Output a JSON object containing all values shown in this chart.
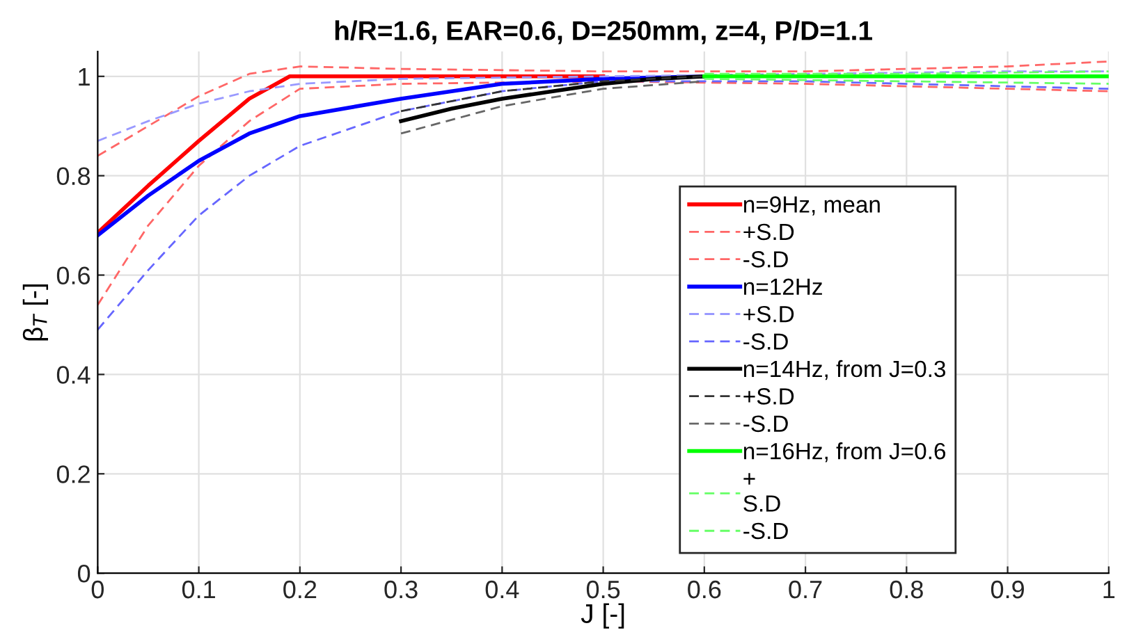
{
  "chart_data": {
    "type": "line",
    "title": "h/R=1.6, EAR=0.6, D=250mm, z=4, P/D=1.1",
    "xlabel": "J [-]",
    "ylabel": "β$_{T}$ [-]",
    "xlim": [
      0,
      1
    ],
    "ylim": [
      0,
      1.05
    ],
    "xticks": [
      0,
      0.1,
      0.2,
      0.3,
      0.4,
      0.5,
      0.6,
      0.7,
      0.8,
      0.9,
      1
    ],
    "yticks": [
      0,
      0.2,
      0.4,
      0.6,
      0.8,
      1
    ],
    "grid": true,
    "legend": "right",
    "marker": "none",
    "series": [
      {
        "name": "n=9Hz, mean",
        "color": "#ff0000",
        "line_style": "solid",
        "x": [
          0,
          0.05,
          0.1,
          0.15,
          0.19,
          0.3,
          0.5
        ],
        "values": [
          0.685,
          0.78,
          0.87,
          0.955,
          1.0,
          1.0,
          1.0
        ]
      },
      {
        "name": "+S.D",
        "color": "#ff6666",
        "line_style": "dashed",
        "x": [
          0,
          0.05,
          0.1,
          0.15,
          0.2,
          0.3,
          0.5,
          0.7,
          0.9,
          1.0
        ],
        "values": [
          0.84,
          0.9,
          0.96,
          1.005,
          1.02,
          1.015,
          1.01,
          1.01,
          1.02,
          1.03
        ]
      },
      {
        "name": "-S.D",
        "color": "#ff6666",
        "line_style": "dashed",
        "x": [
          0,
          0.05,
          0.1,
          0.15,
          0.2,
          0.3,
          0.5,
          0.7,
          0.9,
          1.0
        ],
        "values": [
          0.54,
          0.7,
          0.82,
          0.91,
          0.975,
          0.985,
          0.99,
          0.985,
          0.975,
          0.97
        ]
      },
      {
        "name": "n=12Hz",
        "color": "#0000ff",
        "line_style": "solid",
        "x": [
          0,
          0.05,
          0.1,
          0.15,
          0.2,
          0.3,
          0.4,
          0.5,
          0.6
        ],
        "values": [
          0.68,
          0.76,
          0.83,
          0.885,
          0.92,
          0.955,
          0.985,
          0.995,
          1.0
        ]
      },
      {
        "name": "+S.D",
        "color": "#9999ff",
        "line_style": "dashed",
        "x": [
          0,
          0.05,
          0.1,
          0.15,
          0.2,
          0.3,
          0.5,
          0.7,
          0.9,
          1.0
        ],
        "values": [
          0.87,
          0.91,
          0.945,
          0.97,
          0.985,
          0.995,
          1.0,
          1.005,
          1.01,
          1.01
        ]
      },
      {
        "name": "-S.D",
        "color": "#6666ff",
        "line_style": "dashed",
        "x": [
          0,
          0.05,
          0.1,
          0.15,
          0.2,
          0.3,
          0.4,
          0.5,
          0.7,
          0.9,
          1.0
        ],
        "values": [
          0.49,
          0.61,
          0.72,
          0.8,
          0.86,
          0.93,
          0.97,
          0.99,
          0.99,
          0.98,
          0.975
        ]
      },
      {
        "name": "n=14Hz, from J=0.3",
        "color": "#000000",
        "line_style": "solid",
        "x": [
          0.3,
          0.35,
          0.4,
          0.45,
          0.5,
          0.55,
          0.6
        ],
        "values": [
          0.91,
          0.935,
          0.955,
          0.97,
          0.985,
          0.995,
          1.0
        ]
      },
      {
        "name": "+S.D",
        "color": "#333333",
        "line_style": "dashed",
        "x": [
          0.3,
          0.4,
          0.5,
          0.6
        ],
        "values": [
          0.93,
          0.97,
          0.99,
          1.0
        ]
      },
      {
        "name": "-S.D",
        "color": "#666666",
        "line_style": "dashed",
        "x": [
          0.3,
          0.4,
          0.5,
          0.6
        ],
        "values": [
          0.885,
          0.94,
          0.975,
          0.99
        ]
      },
      {
        "name": "n=16Hz, from J=0.6",
        "color": "#00ff00",
        "line_style": "solid",
        "x": [
          0.6,
          0.8,
          1.0
        ],
        "values": [
          1.0,
          1.0,
          1.0
        ]
      },
      {
        "name": "+\nS.D",
        "color": "#66ff66",
        "line_style": "dashed",
        "x": [
          0.6,
          0.8,
          1.0
        ],
        "values": [
          1.005,
          1.005,
          1.01
        ]
      },
      {
        "name": "-S.D",
        "color": "#66ff66",
        "line_style": "dashed",
        "x": [
          0.6,
          0.8,
          1.0
        ],
        "values": [
          0.995,
          0.99,
          0.985
        ]
      }
    ]
  }
}
